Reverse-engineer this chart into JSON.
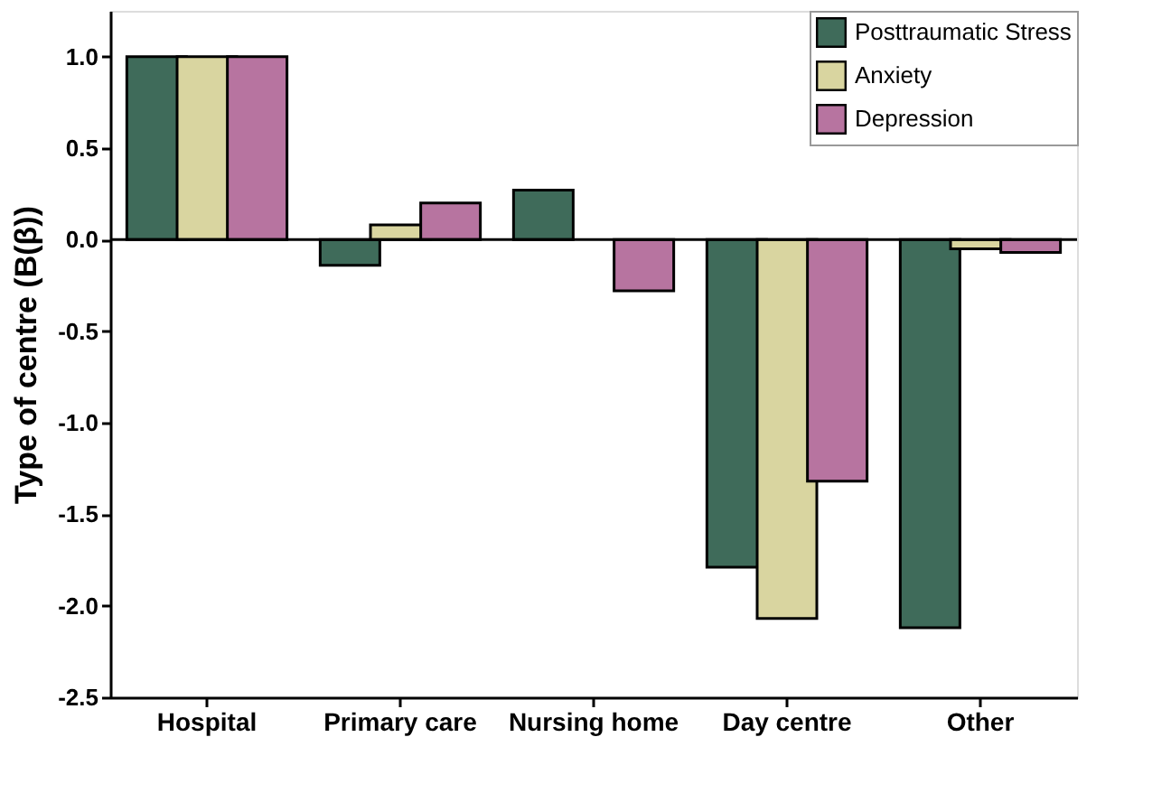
{
  "chart_data": {
    "type": "bar",
    "ylabel": "Type of centre (B(β))",
    "categories": [
      "Hospital",
      "Primary care",
      "Nursing home",
      "Day centre",
      "Other"
    ],
    "series": [
      {
        "name": "Posttraumatic Stress",
        "color": "#3f6b5a",
        "values": [
          1.0,
          -0.14,
          0.27,
          -1.79,
          -2.12
        ]
      },
      {
        "name": "Anxiety",
        "color": "#d9d5a0",
        "values": [
          1.0,
          0.08,
          null,
          -2.07,
          -0.05
        ]
      },
      {
        "name": "Depression",
        "color": "#b774a0",
        "values": [
          1.0,
          0.2,
          -0.28,
          -1.32,
          -0.07
        ]
      }
    ],
    "ylim": [
      -2.5,
      1.25
    ],
    "yticks": [
      {
        "value": -2.5,
        "label": "-2.5"
      },
      {
        "value": -2,
        "label": "-2.0"
      },
      {
        "value": -1.5,
        "label": "-1.5"
      },
      {
        "value": -1,
        "label": "-1.0"
      },
      {
        "value": -0.5,
        "label": "-0.5"
      },
      {
        "value": 0,
        "label": "0.0"
      },
      {
        "value": 0.5,
        "label": "0.5"
      },
      {
        "value": 1,
        "label": "1.0"
      }
    ],
    "ref_lines": [
      {
        "axis": "y",
        "value": 0,
        "color": "#000000"
      }
    ],
    "grid": false,
    "legend": "top right"
  }
}
